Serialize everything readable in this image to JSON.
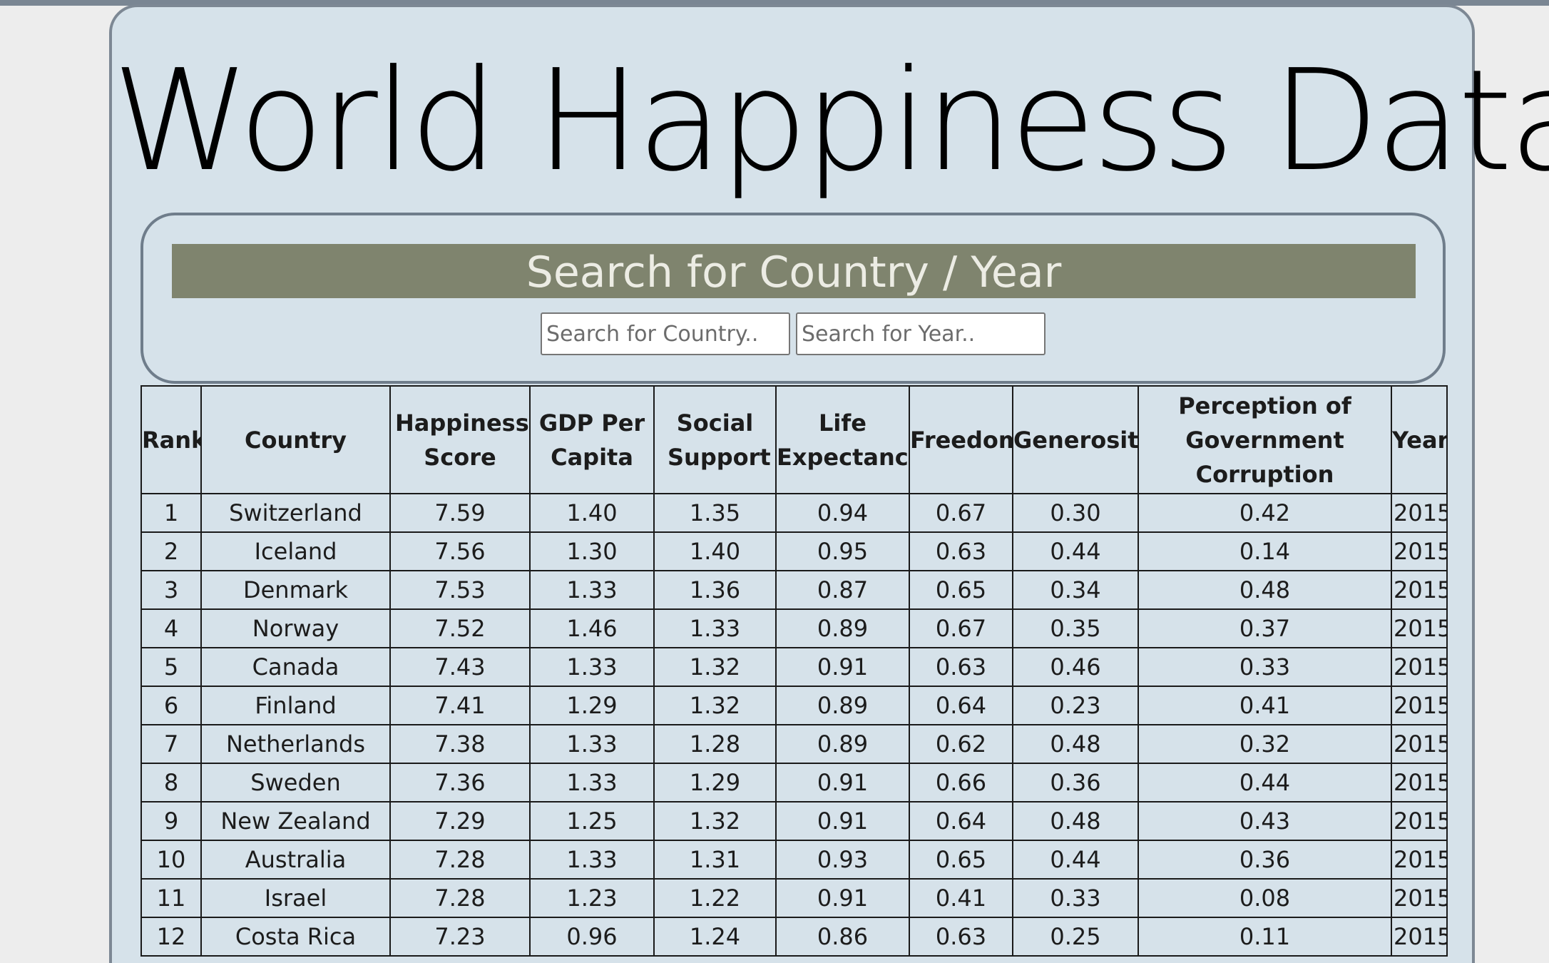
{
  "page": {
    "title": "World Happiness Data"
  },
  "search": {
    "heading": "Search for Country / Year",
    "country_placeholder": "Search for Country..",
    "year_placeholder": "Search for Year.."
  },
  "table": {
    "headers": [
      "Rank",
      "Country",
      "Happiness Score",
      "GDP Per Capita",
      "Social Support",
      "Life Expectancy",
      "Freedom",
      "Generosity",
      "Perception of Government Corruption",
      "Year"
    ],
    "rows": [
      [
        "1",
        "Switzerland",
        "7.59",
        "1.40",
        "1.35",
        "0.94",
        "0.67",
        "0.30",
        "0.42",
        "2015"
      ],
      [
        "2",
        "Iceland",
        "7.56",
        "1.30",
        "1.40",
        "0.95",
        "0.63",
        "0.44",
        "0.14",
        "2015"
      ],
      [
        "3",
        "Denmark",
        "7.53",
        "1.33",
        "1.36",
        "0.87",
        "0.65",
        "0.34",
        "0.48",
        "2015"
      ],
      [
        "4",
        "Norway",
        "7.52",
        "1.46",
        "1.33",
        "0.89",
        "0.67",
        "0.35",
        "0.37",
        "2015"
      ],
      [
        "5",
        "Canada",
        "7.43",
        "1.33",
        "1.32",
        "0.91",
        "0.63",
        "0.46",
        "0.33",
        "2015"
      ],
      [
        "6",
        "Finland",
        "7.41",
        "1.29",
        "1.32",
        "0.89",
        "0.64",
        "0.23",
        "0.41",
        "2015"
      ],
      [
        "7",
        "Netherlands",
        "7.38",
        "1.33",
        "1.28",
        "0.89",
        "0.62",
        "0.48",
        "0.32",
        "2015"
      ],
      [
        "8",
        "Sweden",
        "7.36",
        "1.33",
        "1.29",
        "0.91",
        "0.66",
        "0.36",
        "0.44",
        "2015"
      ],
      [
        "9",
        "New Zealand",
        "7.29",
        "1.25",
        "1.32",
        "0.91",
        "0.64",
        "0.48",
        "0.43",
        "2015"
      ],
      [
        "10",
        "Australia",
        "7.28",
        "1.33",
        "1.31",
        "0.93",
        "0.65",
        "0.44",
        "0.36",
        "2015"
      ],
      [
        "11",
        "Israel",
        "7.28",
        "1.23",
        "1.22",
        "0.91",
        "0.41",
        "0.33",
        "0.08",
        "2015"
      ],
      [
        "12",
        "Costa Rica",
        "7.23",
        "0.96",
        "1.24",
        "0.86",
        "0.63",
        "0.25",
        "0.11",
        "2015"
      ]
    ]
  },
  "colors": {
    "page_background": "#ededed",
    "card_background": "#d6e2ea",
    "card_border": "#7d8894",
    "search_heading_background": "#7f846e",
    "search_heading_text": "#ecece4"
  }
}
